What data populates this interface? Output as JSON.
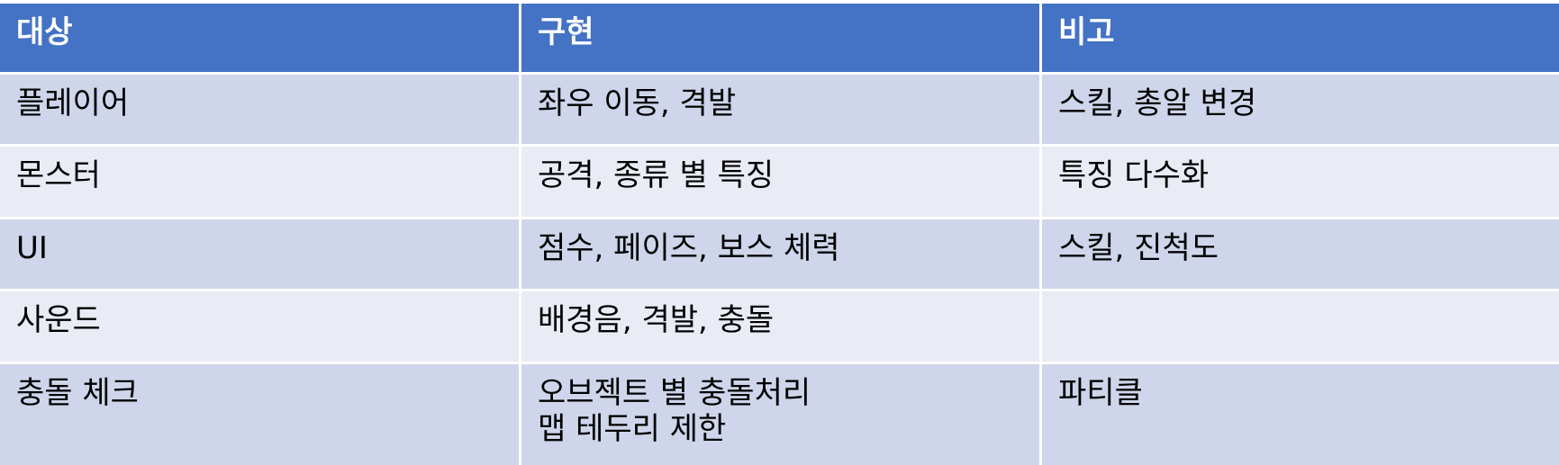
{
  "table": {
    "headers": [
      "대상",
      "구현",
      "비고"
    ],
    "rows": [
      [
        "플레이어",
        "좌우 이동, 격발",
        "스킬, 총알 변경"
      ],
      [
        "몬스터",
        "공격, 종류 별 특징",
        "특징 다수화"
      ],
      [
        "UI",
        "점수, 페이즈, 보스 체력",
        "스킬, 진척도"
      ],
      [
        "사운드",
        "배경음, 격발, 충돌",
        ""
      ],
      [
        "충돌 체크",
        "오브젝트 별 충돌처리\n맵 테두리 제한",
        "파티클"
      ]
    ]
  },
  "colors": {
    "header_bg": "#4472c4",
    "header_text": "#ffffff",
    "row_odd_bg": "#cfd5ea",
    "row_even_bg": "#e9ebf5"
  }
}
